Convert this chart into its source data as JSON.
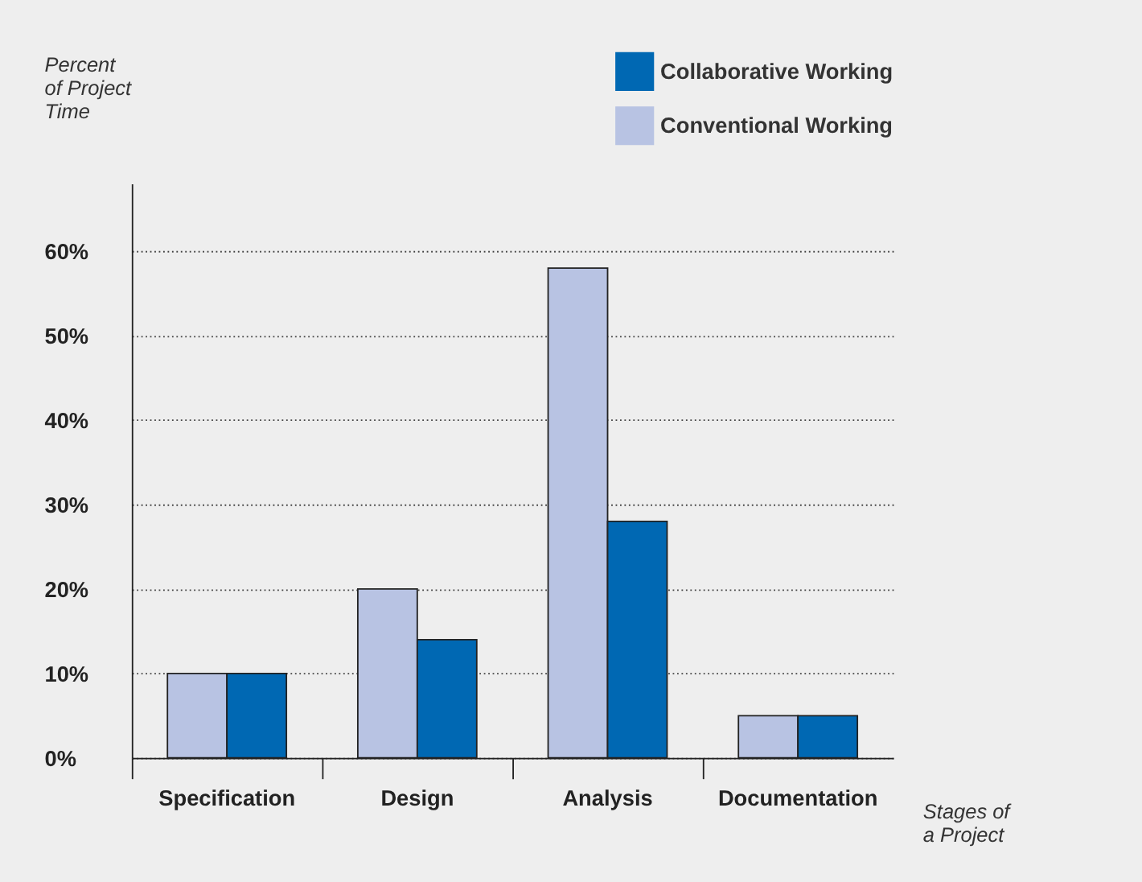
{
  "chart_data": {
    "type": "bar",
    "ylabel": "Percent\nof Project\nTime",
    "xlabel": "Stages of\na Project",
    "categories": [
      "Specification",
      "Design",
      "Analysis",
      "Documentation"
    ],
    "series": [
      {
        "name": "Conventional Working",
        "color": "#b8c3e3",
        "values": [
          10,
          20,
          58,
          5
        ]
      },
      {
        "name": "Collaborative Working",
        "color": "#0068b3",
        "values": [
          10,
          14,
          28,
          5
        ]
      }
    ],
    "ylim": [
      0,
      68
    ],
    "yticks": [
      {
        "value": 0,
        "label": "0%"
      },
      {
        "value": 10,
        "label": "10%"
      },
      {
        "value": 20,
        "label": "20%"
      },
      {
        "value": 30,
        "label": "30%"
      },
      {
        "value": 40,
        "label": "40%"
      },
      {
        "value": 50,
        "label": "50%"
      },
      {
        "value": 60,
        "label": "60%"
      }
    ],
    "grid": "y",
    "legend": "top right"
  }
}
